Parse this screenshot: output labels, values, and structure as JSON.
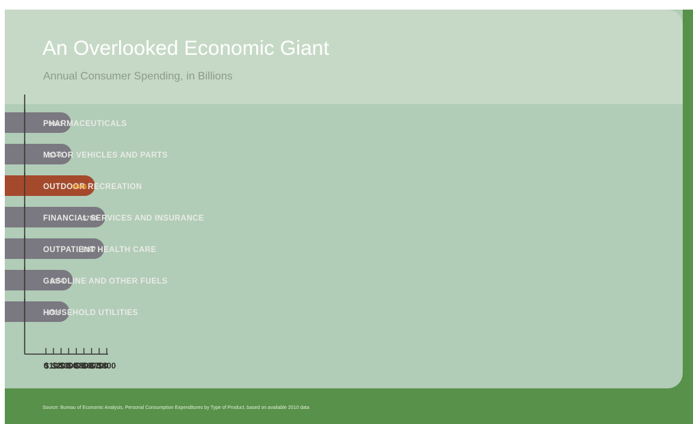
{
  "header": {
    "title": "An Overlooked Economic Giant",
    "subtitle": "Annual Consumer Spending, in Billions"
  },
  "footer": {
    "source": "Source: Bureau of Economic Analysis, Personal Consumption Expenditures by Type of Product, based on available 2010 data"
  },
  "colors": {
    "bar": "#7a7880",
    "highlight_bar": "#a5492c",
    "bar_label": "#e9ebe6",
    "highlight_value": "#f3a733",
    "value_label": "#d9dcd8",
    "axis": "#3a3a36",
    "panel": "#b1ccb7",
    "header_band": "#c6d9c6",
    "footer": "#58914a"
  },
  "chart_data": {
    "type": "bar",
    "orientation": "horizontal",
    "categories": [
      "PHARMACEUTICALS",
      "MOTOR VEHICLES AND PARTS",
      "OUTDOOR RECREATION",
      "FINANCIAL SERVICES AND INSURANCE",
      "OUTPATIENT HEALTH CARE",
      "GASOLINE AND OTHER FUELS",
      "HOUSEHOLD UTILITIES"
    ],
    "values": [
      331,
      340,
      646,
      780,
      767,
      354,
      309
    ],
    "value_labels": [
      "$331",
      "$340",
      "$646",
      "$780",
      "$767",
      "$354",
      "$309"
    ],
    "highlight": "OUTDOOR RECREATION",
    "xlim": [
      0,
      800
    ],
    "x_ticks": [
      0,
      100,
      200,
      300,
      400,
      500,
      600,
      700,
      800
    ],
    "x_tick_labels": [
      "0",
      "$100",
      "$200",
      "$300",
      "$400",
      "$500",
      "$600",
      "$700",
      "$800"
    ],
    "title": "An Overlooked Economic Giant",
    "subtitle": "Annual Consumer Spending, in Billions",
    "grid": false,
    "legend": "none"
  }
}
